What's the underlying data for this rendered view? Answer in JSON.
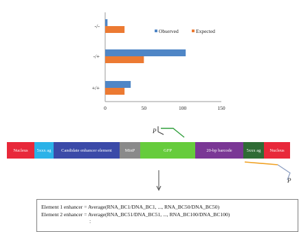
{
  "chart_data": {
    "type": "bar",
    "orientation": "horizontal",
    "categories": [
      "+/+",
      "-/+",
      "-/-"
    ],
    "series": [
      {
        "name": "Observed",
        "color": "#4f86c6",
        "values": [
          33,
          104,
          3
        ]
      },
      {
        "name": "Expected",
        "color": "#ec7a32",
        "values": [
          25,
          50,
          25
        ]
      }
    ],
    "xlim": [
      0,
      150
    ],
    "xticks": [
      "0",
      "50",
      "100",
      "150"
    ],
    "legend_position": "top-right",
    "grid": false
  },
  "construct": {
    "segments": [
      {
        "label": "Nucleus",
        "color": "#e8283a",
        "text_color": "#ffffff"
      },
      {
        "label": "5xxx ag",
        "color": "#2bb2e8",
        "text_color": "#ffffff"
      },
      {
        "label": "Candidate enhancer element",
        "color": "#3b4aa8",
        "text_color": "#ffffff"
      },
      {
        "label": "MinP",
        "color": "#8a8a8a",
        "text_color": "#ffffff"
      },
      {
        "label": "GFP",
        "color": "#66cc3c",
        "text_color": "#ffffff"
      },
      {
        "label": "20-bp barcode",
        "color": "#7a3795",
        "text_color": "#ffffff"
      },
      {
        "label": "5xxx ag",
        "color": "#2f6b35",
        "text_color": "#ffffff"
      },
      {
        "label": "Nucleus",
        "color": "#e8283a",
        "text_color": "#ffffff"
      }
    ],
    "primer_top_label": "P",
    "primer_bottom_label": "P"
  },
  "formulas": {
    "line1": "Element 1 enhancer = Average(RNA_BC1/DNA_BC1, ..., RNA_BC50/DNA_BC50)",
    "line2": "Element 2 enhancer = Average(RNA_BC51/DNA_BC51, ..., RNA_BC100/DNA_BC100)",
    "continuation": ":"
  }
}
